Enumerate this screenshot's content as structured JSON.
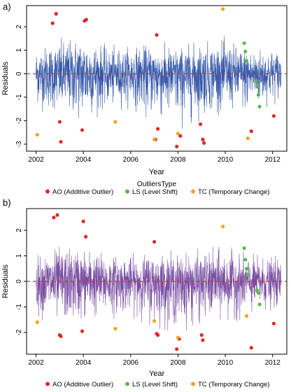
{
  "chart_data": [
    {
      "type": "line",
      "panel_label": "a)",
      "xlabel": "Year",
      "ylabel": "Residuals",
      "xlim": [
        2001.6,
        2012.6
      ],
      "ylim": [
        -3.3,
        2.9
      ],
      "xticks": [
        2002,
        2004,
        2006,
        2008,
        2010,
        2012
      ],
      "xtick_labels": [
        "2002",
        "2004",
        "2006",
        "2008",
        "2010",
        "2012"
      ],
      "yticks": [
        -3,
        -2,
        -1,
        0,
        1,
        2
      ],
      "ytick_labels": [
        "-3",
        "-2",
        "-1",
        "0",
        "1",
        "2"
      ],
      "reference_line": 0,
      "series_color": "#3557a8",
      "residual_envelope": [
        {
          "x": 2002.0,
          "upper": 1.3,
          "lower": -1.5
        },
        {
          "x": 2003.0,
          "upper": 1.6,
          "lower": -2.0
        },
        {
          "x": 2004.0,
          "upper": 1.9,
          "lower": -2.2
        },
        {
          "x": 2005.0,
          "upper": 1.2,
          "lower": -1.6
        },
        {
          "x": 2006.0,
          "upper": 1.3,
          "lower": -1.5
        },
        {
          "x": 2007.0,
          "upper": 1.4,
          "lower": -2.1
        },
        {
          "x": 2008.0,
          "upper": 1.3,
          "lower": -2.4
        },
        {
          "x": 2009.0,
          "upper": 1.5,
          "lower": -2.0
        },
        {
          "x": 2010.0,
          "upper": 1.6,
          "lower": -1.7
        },
        {
          "x": 2011.0,
          "upper": 1.2,
          "lower": -1.8
        },
        {
          "x": 2012.0,
          "upper": 1.2,
          "lower": -1.3
        }
      ],
      "legend": {
        "title": "OutliersType",
        "placement": "bottom",
        "entries": [
          {
            "key": "AO",
            "label": "AO (Additive Outlier)",
            "color": "#e3262a"
          },
          {
            "key": "LS",
            "label": "LS (Level Shift)",
            "color": "#5cb947"
          },
          {
            "key": "TC",
            "label": "TC (Temporary Change)",
            "color": "#f2a41f"
          }
        ]
      },
      "outliers": [
        {
          "type": "AO",
          "x": 2002.7,
          "y": 2.15
        },
        {
          "type": "AO",
          "x": 2002.85,
          "y": 2.55
        },
        {
          "type": "AO",
          "x": 2003.0,
          "y": -2.05
        },
        {
          "type": "AO",
          "x": 2003.05,
          "y": -2.9
        },
        {
          "type": "AO",
          "x": 2003.95,
          "y": -2.4
        },
        {
          "type": "AO",
          "x": 2004.05,
          "y": 2.25
        },
        {
          "type": "AO",
          "x": 2004.12,
          "y": 2.3
        },
        {
          "type": "AO",
          "x": 2007.05,
          "y": -2.8
        },
        {
          "type": "AO",
          "x": 2007.1,
          "y": 1.65
        },
        {
          "type": "AO",
          "x": 2007.15,
          "y": -2.35
        },
        {
          "type": "AO",
          "x": 2007.95,
          "y": -3.1
        },
        {
          "type": "AO",
          "x": 2008.1,
          "y": -2.65
        },
        {
          "type": "AO",
          "x": 2008.95,
          "y": -2.15
        },
        {
          "type": "AO",
          "x": 2009.05,
          "y": -2.8
        },
        {
          "type": "AO",
          "x": 2009.1,
          "y": -2.95
        },
        {
          "type": "AO",
          "x": 2011.1,
          "y": -2.45
        },
        {
          "type": "AO",
          "x": 2012.05,
          "y": -1.8
        },
        {
          "type": "LS",
          "x": 2010.8,
          "y": 1.3
        },
        {
          "type": "LS",
          "x": 2010.85,
          "y": 0.95
        },
        {
          "type": "LS",
          "x": 2010.9,
          "y": 0.55
        },
        {
          "type": "LS",
          "x": 2011.3,
          "y": -0.3
        },
        {
          "type": "LS",
          "x": 2011.35,
          "y": -0.55
        },
        {
          "type": "LS",
          "x": 2011.4,
          "y": -0.9
        },
        {
          "type": "LS",
          "x": 2011.45,
          "y": -1.4
        },
        {
          "type": "TC",
          "x": 2002.05,
          "y": -2.6
        },
        {
          "type": "TC",
          "x": 2005.35,
          "y": -2.05
        },
        {
          "type": "TC",
          "x": 2007.0,
          "y": -2.8
        },
        {
          "type": "TC",
          "x": 2008.0,
          "y": -2.55
        },
        {
          "type": "TC",
          "x": 2009.9,
          "y": 2.75
        },
        {
          "type": "TC",
          "x": 2010.95,
          "y": -2.75
        }
      ]
    },
    {
      "type": "line",
      "panel_label": "b)",
      "xlabel": "Year",
      "ylabel": "Residuals",
      "xlim": [
        2001.6,
        2012.6
      ],
      "ylim": [
        -2.85,
        2.85
      ],
      "xticks": [
        2002,
        2004,
        2006,
        2008,
        2010,
        2012
      ],
      "xtick_labels": [
        "2002",
        "2004",
        "2006",
        "2008",
        "2010",
        "2012"
      ],
      "yticks": [
        -2,
        -1,
        0,
        1,
        2
      ],
      "ytick_labels": [
        "-2",
        "-1",
        "0",
        "1",
        "2"
      ],
      "reference_line": 0,
      "series_color": "#7a4fa3",
      "residual_envelope": [
        {
          "x": 2002.0,
          "upper": 1.1,
          "lower": -1.4
        },
        {
          "x": 2003.0,
          "upper": 1.5,
          "lower": -1.9
        },
        {
          "x": 2004.0,
          "upper": 1.5,
          "lower": -1.7
        },
        {
          "x": 2005.0,
          "upper": 1.2,
          "lower": -1.5
        },
        {
          "x": 2006.0,
          "upper": 1.1,
          "lower": -1.4
        },
        {
          "x": 2007.0,
          "upper": 1.3,
          "lower": -1.8
        },
        {
          "x": 2008.0,
          "upper": 1.2,
          "lower": -2.0
        },
        {
          "x": 2009.0,
          "upper": 1.3,
          "lower": -1.8
        },
        {
          "x": 2010.0,
          "upper": 1.4,
          "lower": -1.6
        },
        {
          "x": 2011.0,
          "upper": 1.1,
          "lower": -1.5
        },
        {
          "x": 2012.0,
          "upper": 1.0,
          "lower": -1.2
        }
      ],
      "legend": {
        "title": "OutliersType",
        "placement": "bottom",
        "entries": [
          {
            "key": "AO",
            "label": "AO (Additive Outlier)",
            "color": "#e3262a"
          },
          {
            "key": "LS",
            "label": "LS (Level Shift)",
            "color": "#5cb947"
          },
          {
            "key": "TC",
            "label": "TC (Temporary Change)",
            "color": "#f2a41f"
          }
        ]
      },
      "outliers": [
        {
          "type": "AO",
          "x": 2002.75,
          "y": 2.5
        },
        {
          "type": "AO",
          "x": 2002.9,
          "y": 2.6
        },
        {
          "type": "AO",
          "x": 2003.0,
          "y": -2.1
        },
        {
          "type": "AO",
          "x": 2003.05,
          "y": -2.15
        },
        {
          "type": "AO",
          "x": 2003.95,
          "y": -1.95
        },
        {
          "type": "AO",
          "x": 2004.0,
          "y": 2.35
        },
        {
          "type": "AO",
          "x": 2004.1,
          "y": 1.75
        },
        {
          "type": "AO",
          "x": 2007.0,
          "y": 1.55
        },
        {
          "type": "AO",
          "x": 2007.1,
          "y": -2.05
        },
        {
          "type": "AO",
          "x": 2007.15,
          "y": -2.1
        },
        {
          "type": "AO",
          "x": 2007.95,
          "y": -2.65
        },
        {
          "type": "AO",
          "x": 2008.05,
          "y": -2.25
        },
        {
          "type": "AO",
          "x": 2009.0,
          "y": -2.1
        },
        {
          "type": "AO",
          "x": 2009.05,
          "y": -2.3
        },
        {
          "type": "AO",
          "x": 2011.1,
          "y": -2.6
        },
        {
          "type": "AO",
          "x": 2012.05,
          "y": -1.65
        },
        {
          "type": "LS",
          "x": 2010.8,
          "y": 1.3
        },
        {
          "type": "LS",
          "x": 2010.85,
          "y": 0.85
        },
        {
          "type": "LS",
          "x": 2010.9,
          "y": 0.5
        },
        {
          "type": "LS",
          "x": 2010.95,
          "y": 0.25
        },
        {
          "type": "LS",
          "x": 2011.35,
          "y": -0.35
        },
        {
          "type": "LS",
          "x": 2011.4,
          "y": -0.45
        },
        {
          "type": "LS",
          "x": 2011.45,
          "y": -0.9
        },
        {
          "type": "TC",
          "x": 2002.05,
          "y": -1.6
        },
        {
          "type": "TC",
          "x": 2005.35,
          "y": -1.85
        },
        {
          "type": "TC",
          "x": 2007.0,
          "y": -1.55
        },
        {
          "type": "TC",
          "x": 2008.0,
          "y": -2.2
        },
        {
          "type": "TC",
          "x": 2009.9,
          "y": 2.15
        },
        {
          "type": "TC",
          "x": 2010.9,
          "y": -1.35
        }
      ]
    }
  ]
}
